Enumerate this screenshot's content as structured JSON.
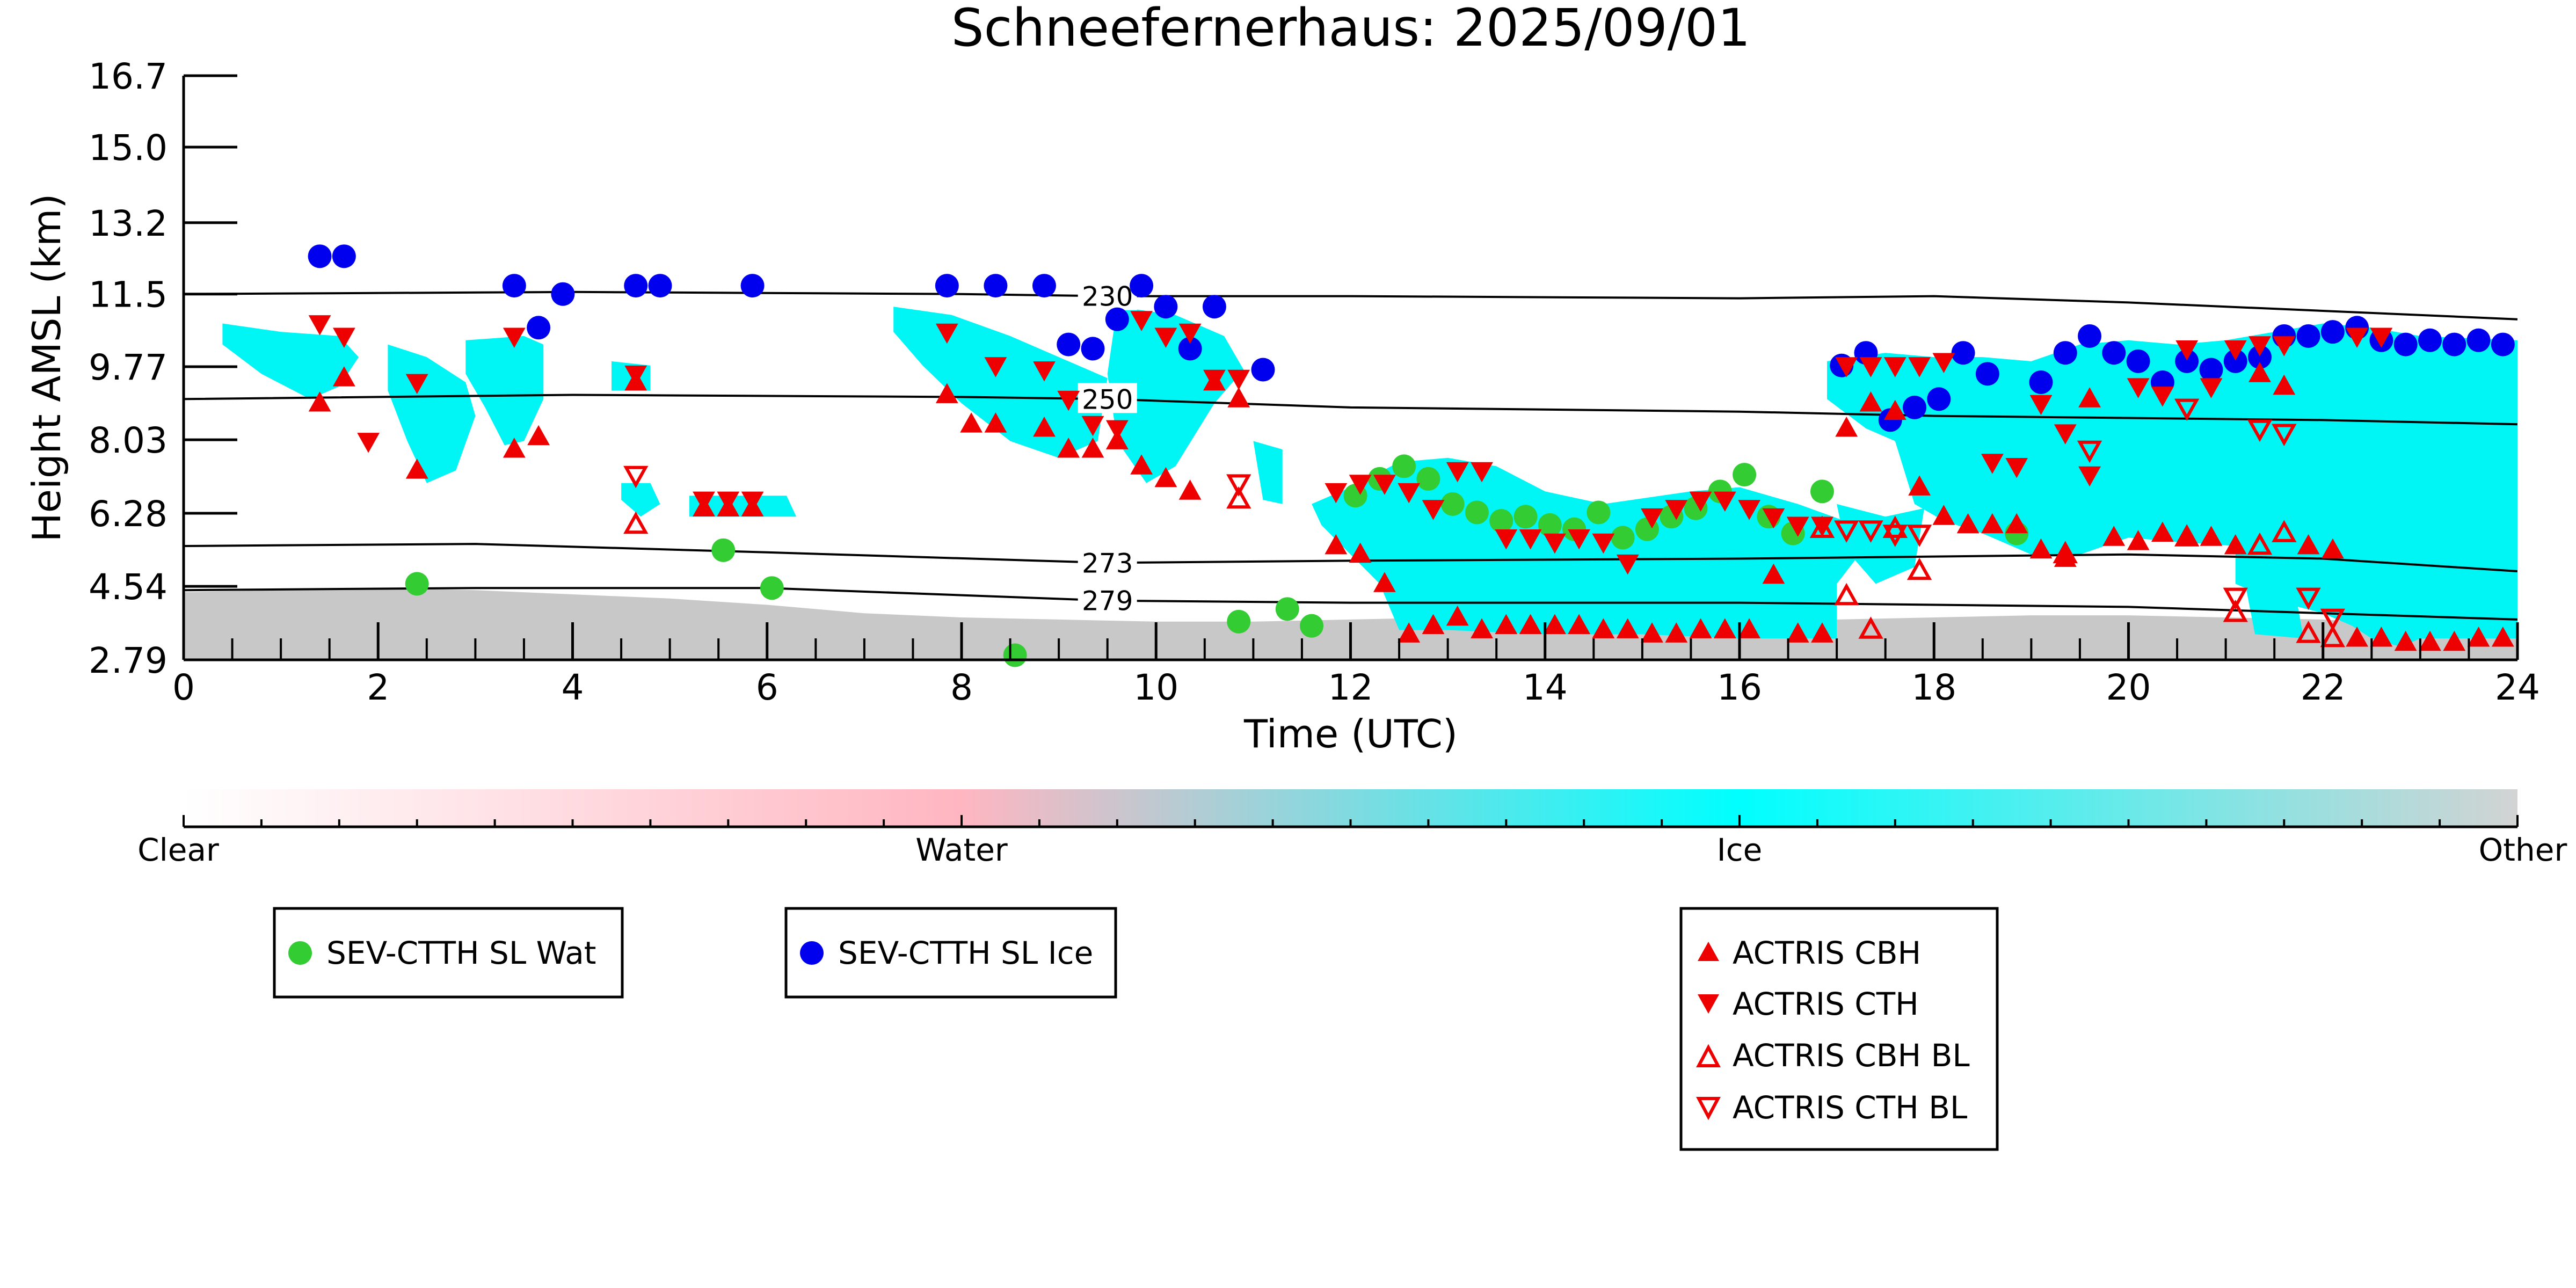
{
  "chart_data": {
    "type": "scatter",
    "title": "Schneefernerhaus: 2025/09/01",
    "xlabel": "Time (UTC)",
    "ylabel": "Height AMSL (km)",
    "xlim": [
      0,
      24
    ],
    "ylim": [
      2.79,
      16.7
    ],
    "xticks": [
      "0",
      "2",
      "4",
      "6",
      "8",
      "10",
      "12",
      "14",
      "16",
      "18",
      "20",
      "22",
      "24"
    ],
    "yticks": [
      "2.79",
      "4.54",
      "6.28",
      "8.03",
      "9.77",
      "11.5",
      "13.2",
      "15.0",
      "16.7"
    ],
    "ytick_values": [
      2.79,
      4.54,
      6.28,
      8.03,
      9.77,
      11.5,
      13.2,
      15.0,
      16.7
    ],
    "grid": false,
    "colorbar": {
      "labels": [
        "Clear",
        "Water",
        "Ice",
        "Other"
      ],
      "colors": [
        "#ffffff",
        "#ffb6c1",
        "#00ffff",
        "#d3d3d3"
      ]
    },
    "colors": {
      "ice": "#00f5f5",
      "other": "#c8c8c8",
      "water_phase": "#ffb6c1",
      "sev_wat": "#33cc33",
      "sev_ice": "#0000ee",
      "actris": "#ee0000"
    },
    "isotherms": [
      {
        "label": "230",
        "label_x": 9.5,
        "x": [
          0,
          4,
          8,
          9.5,
          12,
          16,
          18,
          20,
          22,
          24
        ],
        "y": [
          11.5,
          11.55,
          11.5,
          11.45,
          11.45,
          11.4,
          11.45,
          11.3,
          11.1,
          10.9
        ]
      },
      {
        "label": "250",
        "label_x": 9.5,
        "x": [
          0,
          4,
          8,
          9.5,
          12,
          16,
          18,
          20,
          22,
          24
        ],
        "y": [
          9.0,
          9.1,
          9.05,
          9.0,
          8.8,
          8.7,
          8.6,
          8.55,
          8.5,
          8.4
        ]
      },
      {
        "label": "273",
        "label_x": 9.5,
        "x": [
          0,
          3,
          6,
          9.5,
          12,
          16,
          18,
          20,
          22,
          24
        ],
        "y": [
          5.5,
          5.55,
          5.35,
          5.1,
          5.15,
          5.2,
          5.25,
          5.3,
          5.2,
          4.9
        ]
      },
      {
        "label": "279",
        "label_x": 9.5,
        "x": [
          0,
          3,
          6,
          9.5,
          12,
          16,
          18,
          20,
          22,
          24
        ],
        "y": [
          4.45,
          4.5,
          4.5,
          4.2,
          4.15,
          4.15,
          4.1,
          4.05,
          3.9,
          3.75
        ]
      }
    ],
    "ice_regions": [
      [
        [
          0.4,
          10.8
        ],
        [
          1.0,
          10.6
        ],
        [
          1.6,
          10.5
        ],
        [
          1.8,
          10.0
        ],
        [
          1.6,
          9.3
        ],
        [
          1.3,
          9.0
        ],
        [
          0.8,
          9.6
        ],
        [
          0.4,
          10.3
        ]
      ],
      [
        [
          2.1,
          10.3
        ],
        [
          2.5,
          10.0
        ],
        [
          2.9,
          9.4
        ],
        [
          3.0,
          8.6
        ],
        [
          2.8,
          7.3
        ],
        [
          2.5,
          7.0
        ],
        [
          2.3,
          8.0
        ],
        [
          2.1,
          9.2
        ]
      ],
      [
        [
          2.9,
          10.4
        ],
        [
          3.5,
          10.5
        ],
        [
          3.7,
          10.3
        ],
        [
          3.7,
          9.0
        ],
        [
          3.5,
          8.0
        ],
        [
          3.3,
          7.9
        ],
        [
          3.1,
          8.8
        ],
        [
          2.9,
          9.6
        ]
      ],
      [
        [
          4.4,
          9.9
        ],
        [
          4.8,
          9.8
        ],
        [
          4.8,
          9.2
        ],
        [
          4.4,
          9.2
        ]
      ],
      [
        [
          4.5,
          7.0
        ],
        [
          4.8,
          7.0
        ],
        [
          4.9,
          6.5
        ],
        [
          4.7,
          6.2
        ],
        [
          4.5,
          6.6
        ]
      ],
      [
        [
          5.2,
          6.7
        ],
        [
          6.2,
          6.7
        ],
        [
          6.3,
          6.2
        ],
        [
          5.2,
          6.2
        ]
      ],
      [
        [
          7.3,
          11.2
        ],
        [
          7.9,
          11.0
        ],
        [
          8.5,
          10.5
        ],
        [
          9.0,
          10.0
        ],
        [
          9.5,
          9.5
        ],
        [
          9.4,
          8.0
        ],
        [
          9.0,
          7.6
        ],
        [
          8.5,
          8.0
        ],
        [
          8.0,
          8.9
        ],
        [
          7.6,
          9.8
        ],
        [
          7.3,
          10.6
        ]
      ],
      [
        [
          9.6,
          11.2
        ],
        [
          10.2,
          11.0
        ],
        [
          10.7,
          10.5
        ],
        [
          10.9,
          9.7
        ],
        [
          10.6,
          8.9
        ],
        [
          10.2,
          7.4
        ],
        [
          9.9,
          7.0
        ],
        [
          9.6,
          8.0
        ],
        [
          9.5,
          9.6
        ]
      ],
      [
        [
          11.0,
          8.0
        ],
        [
          11.3,
          7.8
        ],
        [
          11.3,
          6.5
        ],
        [
          11.1,
          6.6
        ]
      ],
      [
        [
          11.6,
          6.5
        ],
        [
          12.0,
          6.9
        ],
        [
          12.5,
          7.5
        ],
        [
          13.0,
          7.6
        ],
        [
          13.5,
          7.4
        ],
        [
          14.0,
          6.8
        ],
        [
          14.6,
          6.5
        ],
        [
          15.5,
          6.8
        ],
        [
          16.0,
          6.9
        ],
        [
          16.6,
          6.5
        ],
        [
          17.2,
          6.0
        ],
        [
          17.2,
          5.2
        ],
        [
          17.0,
          4.6
        ],
        [
          17.0,
          3.3
        ],
        [
          16.5,
          3.3
        ],
        [
          16.0,
          3.3
        ],
        [
          15.0,
          3.4
        ],
        [
          14.0,
          3.4
        ],
        [
          13.0,
          3.5
        ],
        [
          12.5,
          3.5
        ],
        [
          12.3,
          4.6
        ],
        [
          12.0,
          5.3
        ],
        [
          11.7,
          6.0
        ]
      ],
      [
        [
          16.9,
          9.9
        ],
        [
          17.5,
          10.1
        ],
        [
          18.0,
          10.0
        ],
        [
          18.5,
          10.0
        ],
        [
          19.0,
          9.9
        ],
        [
          19.5,
          10.3
        ],
        [
          20.0,
          10.4
        ],
        [
          20.5,
          10.3
        ],
        [
          21.0,
          10.4
        ],
        [
          21.5,
          10.6
        ],
        [
          22.0,
          10.8
        ],
        [
          22.5,
          10.7
        ],
        [
          23.0,
          10.5
        ],
        [
          24.0,
          10.4
        ],
        [
          24.0,
          3.3
        ],
        [
          23.0,
          3.3
        ],
        [
          22.8,
          3.1
        ],
        [
          22.5,
          3.3
        ],
        [
          22.3,
          3.6
        ],
        [
          22.0,
          3.9
        ],
        [
          21.5,
          4.2
        ],
        [
          21.1,
          4.6
        ],
        [
          21.1,
          5.5
        ],
        [
          20.5,
          5.6
        ],
        [
          20.0,
          5.7
        ],
        [
          19.5,
          5.3
        ],
        [
          19.0,
          5.3
        ],
        [
          18.5,
          5.8
        ],
        [
          18.1,
          6.1
        ],
        [
          17.8,
          6.5
        ],
        [
          17.6,
          8.0
        ],
        [
          17.3,
          8.3
        ],
        [
          16.9,
          9.0
        ]
      ],
      [
        [
          17.0,
          6.5
        ],
        [
          17.5,
          6.2
        ],
        [
          17.9,
          6.4
        ],
        [
          17.8,
          5.0
        ],
        [
          17.4,
          4.6
        ],
        [
          17.1,
          5.4
        ]
      ],
      [
        [
          21.2,
          4.6
        ],
        [
          21.7,
          4.6
        ],
        [
          21.8,
          3.3
        ],
        [
          21.3,
          3.4
        ]
      ]
    ],
    "other_region": [
      [
        0,
        2.79
      ],
      [
        0,
        4.4
      ],
      [
        1,
        4.45
      ],
      [
        2,
        4.5
      ],
      [
        3,
        4.45
      ],
      [
        4,
        4.35
      ],
      [
        5,
        4.25
      ],
      [
        6,
        4.1
      ],
      [
        7,
        3.9
      ],
      [
        8,
        3.8
      ],
      [
        9,
        3.75
      ],
      [
        10,
        3.7
      ],
      [
        11,
        3.7
      ],
      [
        12,
        3.75
      ],
      [
        13,
        3.8
      ],
      [
        14,
        3.8
      ],
      [
        15,
        3.75
      ],
      [
        16,
        3.7
      ],
      [
        17,
        3.75
      ],
      [
        18,
        3.8
      ],
      [
        19,
        3.85
      ],
      [
        20,
        3.85
      ],
      [
        21,
        3.8
      ],
      [
        22,
        3.75
      ],
      [
        23,
        3.6
      ],
      [
        24,
        3.5
      ],
      [
        24,
        2.79
      ]
    ],
    "series": [
      {
        "name": "SEV-CTTH SL Wat",
        "marker": "circle",
        "color": "#33cc33",
        "x": [
          2.4,
          5.55,
          6.05,
          8.55,
          10.85,
          11.35,
          11.6,
          12.05,
          12.3,
          12.55,
          12.8,
          13.05,
          13.3,
          13.55,
          13.8,
          14.05,
          14.3,
          14.55,
          14.8,
          15.05,
          15.3,
          15.55,
          15.8,
          16.05,
          16.3,
          16.55,
          16.85,
          18.85
        ],
        "y": [
          4.6,
          5.4,
          4.5,
          2.9,
          3.7,
          4.0,
          3.6,
          6.7,
          7.1,
          7.4,
          7.1,
          6.5,
          6.3,
          6.1,
          6.2,
          6.0,
          5.9,
          6.3,
          5.7,
          5.9,
          6.2,
          6.4,
          6.8,
          7.2,
          6.2,
          5.8,
          6.8,
          5.8
        ]
      },
      {
        "name": "SEV-CTTH SL Ice",
        "marker": "circle",
        "color": "#0000ee",
        "x": [
          1.4,
          1.65,
          3.4,
          3.65,
          3.9,
          4.65,
          4.9,
          5.85,
          7.85,
          8.35,
          8.85,
          9.1,
          9.35,
          9.6,
          9.85,
          10.1,
          10.35,
          10.6,
          11.1,
          17.05,
          17.3,
          17.55,
          17.8,
          18.05,
          18.3,
          18.55,
          19.1,
          19.35,
          19.6,
          19.85,
          20.1,
          20.35,
          20.6,
          20.85,
          21.1,
          21.35,
          21.6,
          21.85,
          22.1,
          22.35,
          22.6,
          22.85,
          23.1,
          23.35,
          23.6,
          23.85
        ],
        "y": [
          12.4,
          12.4,
          11.7,
          10.7,
          11.5,
          11.7,
          11.7,
          11.7,
          11.7,
          11.7,
          11.7,
          10.3,
          10.2,
          10.9,
          11.7,
          11.2,
          10.2,
          11.2,
          9.7,
          9.8,
          10.1,
          8.5,
          8.8,
          9.0,
          10.1,
          9.6,
          9.4,
          10.1,
          10.5,
          10.1,
          9.9,
          9.4,
          9.9,
          9.7,
          9.9,
          10.0,
          10.5,
          10.5,
          10.6,
          10.7,
          10.4,
          10.3,
          10.4,
          10.3,
          10.4,
          10.3
        ]
      },
      {
        "name": "ACTRIS CBH",
        "marker": "triangle-up",
        "color": "#ee0000",
        "filled": true,
        "x": [
          1.4,
          1.65,
          2.4,
          3.4,
          3.65,
          4.65,
          5.35,
          5.6,
          5.85,
          7.85,
          8.1,
          8.35,
          8.85,
          9.1,
          9.35,
          9.6,
          9.85,
          10.1,
          10.35,
          10.6,
          10.85,
          11.85,
          12.1,
          12.35,
          12.6,
          12.85,
          13.1,
          13.35,
          13.6,
          13.85,
          14.1,
          14.35,
          14.6,
          14.85,
          15.1,
          15.35,
          15.6,
          15.85,
          16.1,
          16.35,
          16.6,
          16.85,
          17.1,
          17.35,
          17.6,
          17.85,
          18.1,
          18.35,
          18.6,
          18.85,
          19.1,
          19.35,
          19.6,
          19.85,
          20.1,
          20.35,
          20.6,
          20.85,
          21.1,
          21.35,
          21.6,
          21.85,
          22.1,
          22.35,
          22.6,
          22.85,
          23.1,
          23.35,
          23.6,
          23.85
        ],
        "y": [
          8.9,
          9.5,
          7.3,
          7.8,
          8.1,
          9.4,
          6.4,
          6.4,
          6.4,
          9.1,
          8.4,
          8.4,
          8.3,
          7.8,
          7.8,
          8.0,
          7.4,
          7.1,
          6.8,
          9.4,
          9.0,
          5.5,
          5.3,
          4.6,
          3.4,
          3.6,
          3.8,
          3.5,
          3.6,
          3.6,
          3.6,
          3.6,
          3.5,
          3.5,
          3.4,
          3.4,
          3.5,
          3.5,
          3.5,
          4.8,
          3.4,
          3.4,
          8.3,
          8.9,
          8.7,
          6.9,
          6.2,
          6.0,
          6.0,
          6.0,
          5.4,
          5.2,
          9.0,
          5.7,
          5.6,
          5.8,
          5.7,
          5.7,
          5.5,
          9.6,
          9.3,
          5.5,
          5.4,
          3.3,
          3.3,
          3.2,
          3.2,
          3.2,
          3.3,
          3.3
        ]
      },
      {
        "name": "ACTRIS CTH",
        "marker": "triangle-down",
        "color": "#ee0000",
        "filled": true,
        "x": [
          1.4,
          1.65,
          1.9,
          2.4,
          3.4,
          4.65,
          5.35,
          5.6,
          5.85,
          7.85,
          8.35,
          8.85,
          9.1,
          9.35,
          9.6,
          9.85,
          10.1,
          10.35,
          10.6,
          10.85,
          11.85,
          12.1,
          12.35,
          12.6,
          12.85,
          13.1,
          13.35,
          13.6,
          13.85,
          14.1,
          14.35,
          14.6,
          14.85,
          15.1,
          15.35,
          15.6,
          15.85,
          16.1,
          16.35,
          16.6,
          16.85,
          17.1,
          17.35,
          17.6,
          17.85,
          18.1,
          18.6,
          18.85,
          19.1,
          19.35,
          19.6,
          20.1,
          20.35,
          20.6,
          20.85,
          21.1,
          21.35,
          21.6,
          22.35,
          22.6
        ],
        "y": [
          10.8,
          10.5,
          8.0,
          9.4,
          10.5,
          9.6,
          6.6,
          6.6,
          6.6,
          10.6,
          9.8,
          9.7,
          9.0,
          8.4,
          8.3,
          10.9,
          10.5,
          10.6,
          9.5,
          9.5,
          6.8,
          7.0,
          7.0,
          6.8,
          6.4,
          7.3,
          7.3,
          5.7,
          5.7,
          5.6,
          5.7,
          5.6,
          5.1,
          6.2,
          6.4,
          6.6,
          6.6,
          6.4,
          6.2,
          6.0,
          6.0,
          9.8,
          9.8,
          9.8,
          9.8,
          9.9,
          7.5,
          7.4,
          8.9,
          8.2,
          7.2,
          9.3,
          9.1,
          10.2,
          9.3,
          10.2,
          10.3,
          10.3,
          10.5,
          10.5
        ]
      },
      {
        "name": "ACTRIS CBH BL",
        "marker": "triangle-up",
        "color": "#ee0000",
        "filled": false,
        "x": [
          4.65,
          10.85,
          16.85,
          17.1,
          17.35,
          17.6,
          17.85,
          19.35,
          20.6,
          21.1,
          21.35,
          21.6,
          21.85,
          22.1
        ],
        "y": [
          6.0,
          6.6,
          5.9,
          4.3,
          3.5,
          5.9,
          4.9,
          5.3,
          5.7,
          3.9,
          5.5,
          5.8,
          3.4,
          3.3
        ]
      },
      {
        "name": "ACTRIS CTH BL",
        "marker": "triangle-down",
        "color": "#ee0000",
        "filled": false,
        "x": [
          4.65,
          10.85,
          17.1,
          17.35,
          17.6,
          17.85,
          19.6,
          20.6,
          21.1,
          21.35,
          21.6,
          21.85,
          22.1
        ],
        "y": [
          7.2,
          7.0,
          5.9,
          5.9,
          5.8,
          5.8,
          7.8,
          8.8,
          4.3,
          8.3,
          8.2,
          4.3,
          3.8
        ]
      }
    ]
  },
  "legend": {
    "box1": [
      "SEV-CTTH SL Wat"
    ],
    "box2": [
      "SEV-CTTH SL Ice"
    ],
    "box3": [
      "ACTRIS CBH",
      "ACTRIS CTH",
      "ACTRIS CBH BL",
      "ACTRIS CTH BL"
    ]
  }
}
